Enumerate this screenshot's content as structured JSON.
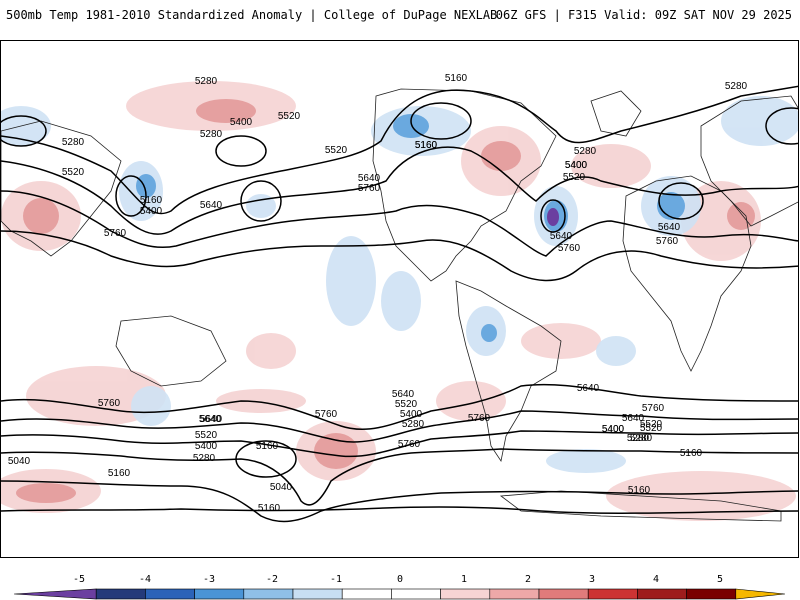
{
  "header": {
    "title_left": "500mb Temp 1981-2010 Standardized Anomaly | College of DuPage NEXLAB",
    "title_right": "06Z GFS | F315 Valid: 09Z SAT NOV 29 2025"
  },
  "contour_labels": [
    "5280",
    "5160",
    "5280",
    "5520",
    "5400",
    "5280",
    "5280",
    "5520",
    "5160",
    "5400",
    "5640",
    "5760",
    "5520",
    "5160",
    "5400",
    "5640",
    "5760",
    "5280",
    "5400",
    "5520",
    "5160",
    "5640",
    "5760",
    "5640",
    "5760",
    "5640",
    "5760",
    "5640",
    "5520",
    "5400",
    "5280",
    "5160",
    "5040",
    "5160",
    "5040",
    "5160",
    "5760",
    "5640",
    "5520",
    "5400",
    "5280",
    "5760",
    "5640",
    "5520",
    "5400",
    "5280",
    "5760",
    "5640",
    "5760",
    "5520",
    "5400",
    "5280",
    "5160",
    "5160"
  ],
  "colorbar": {
    "ticks": [
      "-5",
      "-4",
      "-3",
      "-2",
      "-1",
      "0",
      "1",
      "2",
      "3",
      "4",
      "5"
    ],
    "colors": [
      "#6b3fa0",
      "#243a7a",
      "#2b63b8",
      "#4a94d6",
      "#8fc0e8",
      "#c8dff3",
      "#ffffff",
      "#ffffff",
      "#f7d4d4",
      "#eea8a8",
      "#e07b7b",
      "#cc3333",
      "#9e1c1c",
      "#7a0000",
      "#f5b800"
    ]
  }
}
